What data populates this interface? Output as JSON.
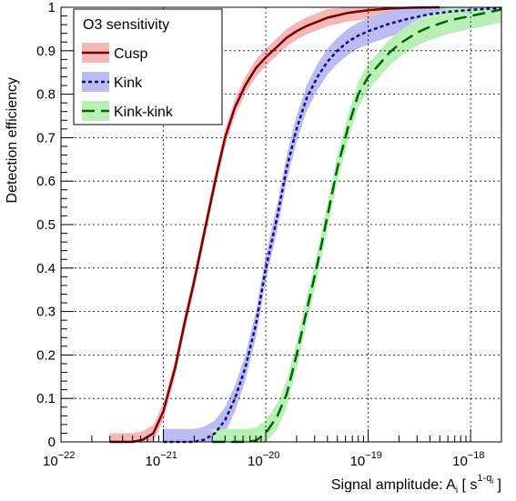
{
  "chart_data": {
    "type": "line",
    "title": "",
    "xlabel_prefix": "Signal amplitude: A",
    "xlabel_sub": "i",
    "xlabel_open": " [ s",
    "xlabel_sup": "1-q",
    "xlabel_sup_sub": "i",
    "xlabel_close": " ]",
    "ylabel": "Detection efficiency",
    "xscale": "log",
    "xlim": [
      1e-22,
      2e-18
    ],
    "ylim": [
      0,
      1
    ],
    "grid": true,
    "x_ticks": [
      {
        "base": "10",
        "exp": "−22"
      },
      {
        "base": "10",
        "exp": "−21"
      },
      {
        "base": "10",
        "exp": "−20"
      },
      {
        "base": "10",
        "exp": "−19"
      },
      {
        "base": "10",
        "exp": "−18"
      }
    ],
    "y_ticks": [
      "0",
      "0.1",
      "0.2",
      "0.3",
      "0.4",
      "0.5",
      "0.6",
      "0.7",
      "0.8",
      "0.9",
      "1"
    ],
    "legend": {
      "title": "O3 sensitivity",
      "placement": "top-left",
      "entries": [
        "Cusp",
        "Kink",
        "Kink-kink"
      ]
    },
    "series": [
      {
        "name": "Cusp",
        "color": "#7a0000",
        "band_color": "#f4b8b8",
        "dash": "solid",
        "x": [
          3e-22,
          5e-22,
          6.3e-22,
          8e-22,
          1e-21,
          1.3e-21,
          1.6e-21,
          2e-21,
          2.5e-21,
          3.2e-21,
          4e-21,
          5e-21,
          6.3e-21,
          8e-21,
          1e-20,
          1.3e-20,
          1.6e-20,
          2e-20,
          2.5e-20,
          3.2e-20,
          4e-20,
          6.3e-20,
          1e-19,
          1.6e-19,
          2.5e-19,
          5e-19
        ],
        "y": [
          0,
          0,
          0.005,
          0.02,
          0.07,
          0.17,
          0.27,
          0.37,
          0.48,
          0.6,
          0.7,
          0.77,
          0.82,
          0.86,
          0.885,
          0.91,
          0.93,
          0.945,
          0.957,
          0.967,
          0.976,
          0.987,
          0.993,
          0.997,
          0.999,
          1.0
        ],
        "band_width": 0.02
      },
      {
        "name": "Kink",
        "color": "#0b0b8c",
        "band_color": "#bcbcf0",
        "dash": "4,3",
        "x": [
          1e-21,
          2e-21,
          2.5e-21,
          3.2e-21,
          4e-21,
          5e-21,
          6.3e-21,
          8e-21,
          1e-20,
          1.3e-20,
          1.6e-20,
          2e-20,
          2.5e-20,
          3.2e-20,
          4e-20,
          5e-20,
          6.3e-20,
          8e-20,
          1e-19,
          1.6e-19,
          2.5e-19,
          4e-19,
          6.3e-19,
          1e-18,
          1.6e-18,
          2e-18
        ],
        "y": [
          0,
          0,
          0.005,
          0.02,
          0.05,
          0.1,
          0.17,
          0.27,
          0.4,
          0.52,
          0.63,
          0.72,
          0.79,
          0.84,
          0.875,
          0.9,
          0.92,
          0.935,
          0.945,
          0.962,
          0.974,
          0.984,
          0.99,
          0.994,
          0.997,
          0.998
        ],
        "band_width": 0.03
      },
      {
        "name": "Kink-kink",
        "color": "#006400",
        "band_color": "#b8f0b8",
        "dash": "14,7",
        "x": [
          3e-21,
          6.3e-21,
          8e-21,
          1e-20,
          1.3e-20,
          1.6e-20,
          2e-20,
          2.5e-20,
          3.2e-20,
          4e-20,
          5e-20,
          6.3e-20,
          8e-20,
          1e-19,
          1.3e-19,
          1.6e-19,
          2e-19,
          2.5e-19,
          3.2e-19,
          4e-19,
          6.3e-19,
          1e-18,
          1.6e-18,
          2e-18
        ],
        "y": [
          0,
          0,
          0.003,
          0.02,
          0.06,
          0.11,
          0.2,
          0.3,
          0.41,
          0.52,
          0.63,
          0.72,
          0.8,
          0.84,
          0.87,
          0.895,
          0.915,
          0.93,
          0.945,
          0.955,
          0.97,
          0.98,
          0.99,
          0.995
        ],
        "band_width": 0.03
      }
    ]
  }
}
